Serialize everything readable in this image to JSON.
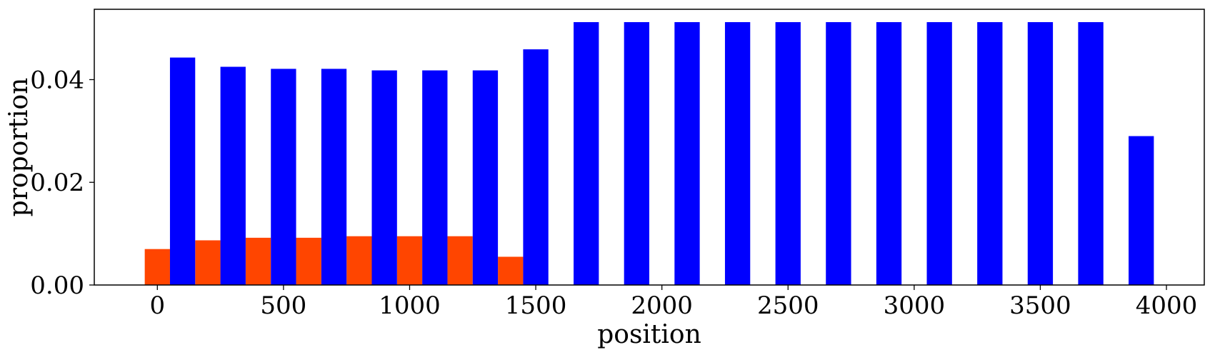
{
  "chart_data": {
    "type": "bar",
    "title": "",
    "xlabel": "position",
    "ylabel": "proportion",
    "xlim": [
      -250,
      4150
    ],
    "ylim": [
      0,
      0.0537
    ],
    "bar_width": 100,
    "xticks": [
      0,
      500,
      1000,
      1500,
      2000,
      2500,
      3000,
      3500,
      4000
    ],
    "xtick_labels": [
      "0",
      "500",
      "1000",
      "1500",
      "2000",
      "2500",
      "3000",
      "3500",
      "4000"
    ],
    "yticks": [
      0.0,
      0.02,
      0.04
    ],
    "ytick_labels": [
      "0.00",
      "0.02",
      "0.04"
    ],
    "grid": false,
    "legend": "none",
    "series": [
      {
        "color": "#ff4500",
        "x": [
          0,
          200,
          400,
          600,
          800,
          1000,
          1200,
          1400
        ],
        "values": [
          0.007,
          0.0087,
          0.0092,
          0.0092,
          0.0095,
          0.0095,
          0.0095,
          0.0055
        ]
      },
      {
        "color": "#0000ff",
        "x": [
          100,
          300,
          500,
          700,
          900,
          1100,
          1300,
          1500,
          1700,
          1900,
          2100,
          2300,
          2500,
          2700,
          2900,
          3100,
          3300,
          3500,
          3700,
          3900
        ],
        "values": [
          0.0443,
          0.0425,
          0.0421,
          0.0421,
          0.0418,
          0.0418,
          0.0418,
          0.0459,
          0.0512,
          0.0512,
          0.0512,
          0.0512,
          0.0512,
          0.0512,
          0.0512,
          0.0512,
          0.0512,
          0.0512,
          0.0512,
          0.029
        ]
      }
    ]
  }
}
